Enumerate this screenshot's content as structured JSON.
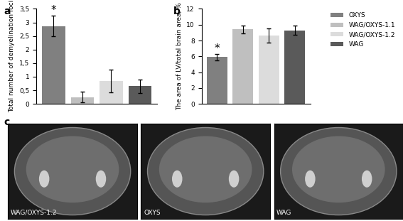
{
  "chart_data": [
    {
      "type": "bar",
      "panel": "a",
      "y_label": "Total number of demyelination foci",
      "categories": [
        "OXYS",
        "WAG/OXYS-1.1",
        "WAG/OXYS-1.2",
        "WAG"
      ],
      "values": [
        2.87,
        0.25,
        0.85,
        0.65
      ],
      "errors": [
        0.38,
        0.2,
        0.42,
        0.25
      ],
      "colors": [
        "#808080",
        "#bfbfbf",
        "#dcdcdc",
        "#5a5a5a"
      ],
      "ylim": [
        0,
        3.5
      ],
      "yticks": [
        0,
        {
          "value": 0.5,
          "label": "0,5"
        },
        1,
        {
          "value": 1.5,
          "label": "1,5"
        },
        2,
        {
          "value": 2.5,
          "label": "2,5"
        },
        3,
        {
          "value": 3.5,
          "label": "3,5"
        }
      ],
      "tick_labels": "y",
      "annotations": [
        {
          "text": "*",
          "category": "OXYS"
        }
      ]
    },
    {
      "type": "bar",
      "panel": "b",
      "y_label": "The area of LV/total brain area, %",
      "categories": [
        "OXYS",
        "WAG/OXYS-1.1",
        "WAG/OXYS-1.2",
        "WAG"
      ],
      "values": [
        5.9,
        9.4,
        8.6,
        9.3
      ],
      "errors": [
        0.4,
        0.5,
        0.9,
        0.6
      ],
      "colors": [
        "#808080",
        "#bfbfbf",
        "#dcdcdc",
        "#5a5a5a"
      ],
      "ylim": [
        0,
        12
      ],
      "yticks": [
        0,
        2,
        4,
        6,
        8,
        10,
        12
      ],
      "tick_labels": "y",
      "legend": "upper right",
      "annotations": [
        {
          "text": "*",
          "category": "OXYS"
        }
      ]
    }
  ],
  "images": {
    "panel": "c",
    "labels": [
      "WAG/OXYS-1.2",
      "OXYS",
      "WAG"
    ]
  }
}
